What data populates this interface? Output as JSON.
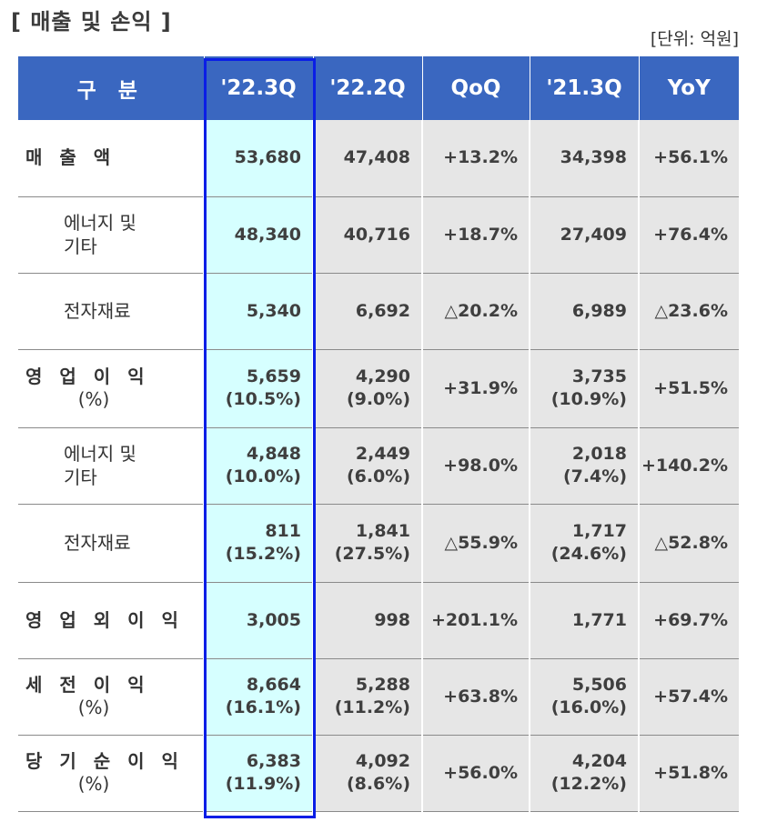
{
  "title": "[ 매출 및 손익 ]",
  "unit": "[단위: 억원]",
  "headers": [
    "구 분",
    "'22.3Q",
    "'22.2Q",
    "QoQ",
    "'21.3Q",
    "YoY"
  ],
  "rows": [
    {
      "label": "매 출 액",
      "sub": "",
      "type": "main",
      "cells": [
        [
          "53,680"
        ],
        [
          "47,408"
        ],
        [
          "+13.2%"
        ],
        [
          "34,398"
        ],
        [
          "+56.1%"
        ]
      ]
    },
    {
      "label": "에너지 및",
      "sub": "기타",
      "type": "sub",
      "cells": [
        [
          "48,340"
        ],
        [
          "40,716"
        ],
        [
          "+18.7%"
        ],
        [
          "27,409"
        ],
        [
          "+76.4%"
        ]
      ]
    },
    {
      "label": "전자재료",
      "sub": "",
      "type": "sub",
      "cells": [
        [
          "5,340"
        ],
        [
          "6,692"
        ],
        [
          "△20.2%"
        ],
        [
          "6,989"
        ],
        [
          "△23.6%"
        ]
      ]
    },
    {
      "label": "영 업 이 익",
      "sub": "(%)",
      "type": "main",
      "cells": [
        [
          "5,659",
          "(10.5%)"
        ],
        [
          "4,290",
          "(9.0%)"
        ],
        [
          "+31.9%"
        ],
        [
          "3,735",
          "(10.9%)"
        ],
        [
          "+51.5%"
        ]
      ]
    },
    {
      "label": "에너지 및",
      "sub": "기타",
      "type": "sub",
      "cells": [
        [
          "4,848",
          "(10.0%)"
        ],
        [
          "2,449",
          "(6.0%)"
        ],
        [
          "+98.0%"
        ],
        [
          "2,018",
          "(7.4%)"
        ],
        [
          "+140.2%"
        ]
      ]
    },
    {
      "label": "전자재료",
      "sub": "",
      "type": "sub",
      "cells": [
        [
          "811",
          "(15.2%)"
        ],
        [
          "1,841",
          "(27.5%)"
        ],
        [
          "△55.9%"
        ],
        [
          "1,717",
          "(24.6%)"
        ],
        [
          "△52.8%"
        ]
      ]
    },
    {
      "label": "영 업 외 이 익",
      "sub": "",
      "type": "main",
      "cells": [
        [
          "3,005"
        ],
        [
          "998"
        ],
        [
          "+201.1%"
        ],
        [
          "1,771"
        ],
        [
          "+69.7%"
        ]
      ]
    },
    {
      "label": "세 전 이 익",
      "sub": "(%)",
      "type": "main",
      "cells": [
        [
          "8,664",
          "(16.1%)"
        ],
        [
          "5,288",
          "(11.2%)"
        ],
        [
          "+63.8%"
        ],
        [
          "5,506",
          "(16.0%)"
        ],
        [
          "+57.4%"
        ]
      ]
    },
    {
      "label": "당 기 순 이 익",
      "sub": "(%)",
      "type": "main",
      "cells": [
        [
          "6,383",
          "(11.9%)"
        ],
        [
          "4,092",
          "(8.6%)"
        ],
        [
          "+56.0%"
        ],
        [
          "4,204",
          "(12.2%)"
        ],
        [
          "+51.8%"
        ]
      ]
    }
  ],
  "colors": {
    "header_bg": "#3a67c0",
    "cell_bg": "#e6e6e6",
    "highlight_bg": "#d6ffff",
    "highlight_border": "#0a1ee6"
  }
}
